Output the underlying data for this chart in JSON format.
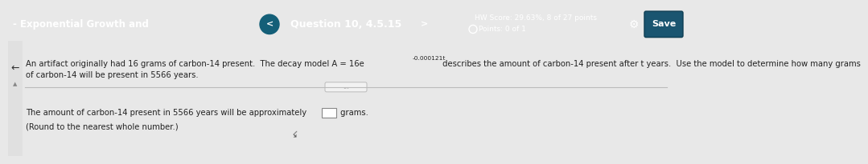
{
  "header_bg": "#1e7898",
  "header_text_left": "- Exponential Growth and",
  "header_text_left_color": "#ffffff",
  "header_question": "Question 10, 4.5.15",
  "header_hw_score": "HW Score: 29.63%, 8 of 27 points",
  "header_points": "Points: 0 of 1",
  "save_btn_text": "Save",
  "body_bg": "#e8e8e8",
  "body_text1": "An artifact originally had 16 grams of carbon-14 present.  The decay model A = 16e",
  "body_exponent": "-0.000121t",
  "body_text2": " describes the amount of carbon-14 present after t years.  Use the model to determine how many grams",
  "body_text3": "of carbon-14 will be present in 5566 years.",
  "answer_text": "The amount of carbon-14 present in 5566 years will be approximately",
  "answer_unit": " grams.",
  "round_note": "(Round to the nearest whole number.)",
  "divider_color": "#bbbbbb",
  "font_size_header": 8.5,
  "font_size_body": 7.2,
  "font_size_answer": 7.2
}
